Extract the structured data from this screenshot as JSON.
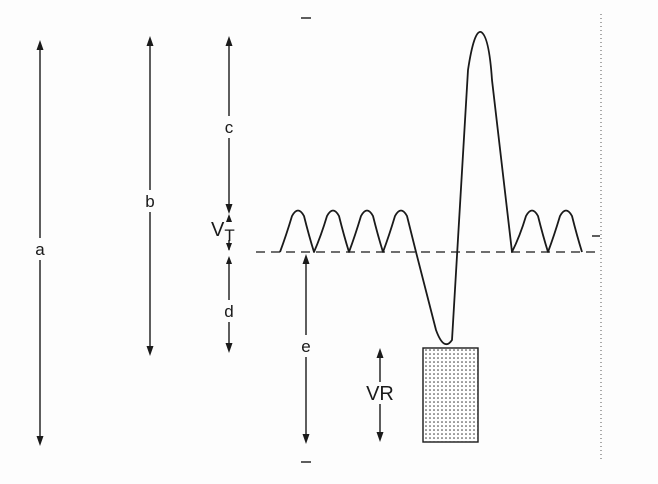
{
  "diagram": {
    "labels": {
      "a": "a",
      "b": "b",
      "c": "c",
      "d": "d",
      "e": "e",
      "vt_main": "V",
      "vt_sub": "T",
      "vr": "VR"
    }
  }
}
